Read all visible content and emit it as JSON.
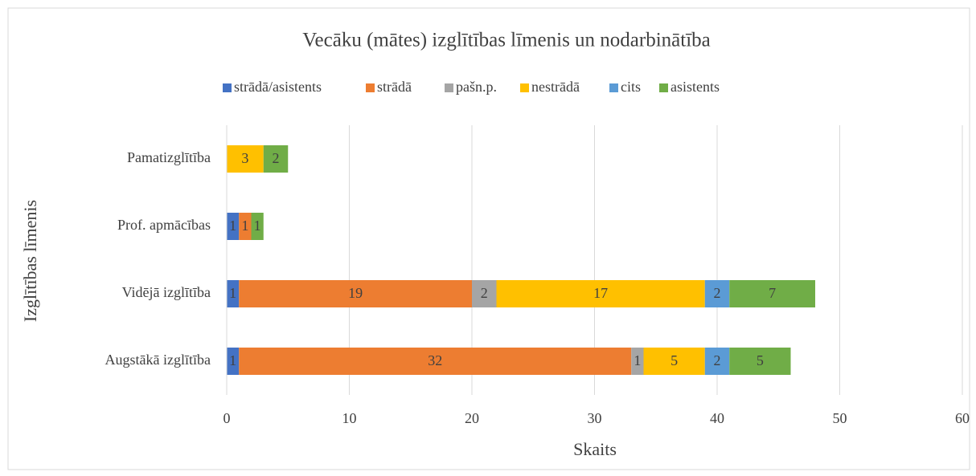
{
  "chart_data": {
    "type": "stacked_barh",
    "title": "Vecāku (mātes) izglītības līmenis un nodarbinātība",
    "xlabel": "Skaits",
    "ylabel": "Izglītības līmenis",
    "categories": [
      "Augstākā izglītība",
      "Vidējā izglītība",
      "Prof. apmācības",
      "Pamatizglītība"
    ],
    "series": [
      {
        "name": "strādā/asistents",
        "color": "#4472c4",
        "values": [
          1,
          1,
          1,
          null
        ]
      },
      {
        "name": "strādā",
        "color": "#ed7d31",
        "values": [
          32,
          19,
          1,
          null
        ]
      },
      {
        "name": "pašn.p.",
        "color": "#a5a5a5",
        "values": [
          1,
          2,
          null,
          null
        ]
      },
      {
        "name": "nestrādā",
        "color": "#ffc000",
        "values": [
          5,
          17,
          null,
          3
        ]
      },
      {
        "name": "cits",
        "color": "#5b9bd5",
        "values": [
          2,
          2,
          null,
          null
        ]
      },
      {
        "name": "asistents",
        "color": "#70ad47",
        "values": [
          5,
          7,
          1,
          2
        ]
      }
    ],
    "xlim": [
      0,
      60
    ],
    "xticks": [
      0,
      10,
      20,
      30,
      40,
      50,
      60
    ],
    "grid": true,
    "legend": "top"
  }
}
